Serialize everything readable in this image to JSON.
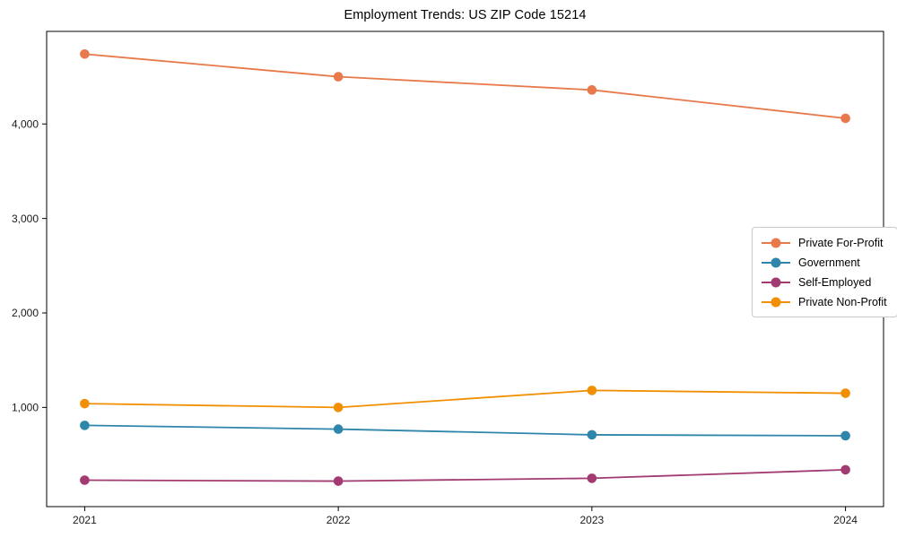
{
  "title": "Employment Trends: US ZIP Code 15214",
  "chart_data": {
    "type": "line",
    "x": [
      2021,
      2022,
      2023,
      2024
    ],
    "x_tick_labels": [
      "2021",
      "2022",
      "2023",
      "2024"
    ],
    "series": [
      {
        "name": "Private For-Profit",
        "color": "#E8794B",
        "values": [
          4740,
          4500,
          4360,
          4060
        ]
      },
      {
        "name": "Government",
        "color": "#2E86AB",
        "values": [
          810,
          770,
          710,
          700
        ]
      },
      {
        "name": "Self-Employed",
        "color": "#A23B72",
        "values": [
          230,
          220,
          250,
          340
        ]
      },
      {
        "name": "Private Non-Profit",
        "color": "#F18F01",
        "values": [
          1040,
          1000,
          1180,
          1150
        ]
      }
    ],
    "yticks": [
      1000,
      2000,
      3000,
      4000
    ],
    "ytick_labels": [
      "1,000",
      "2,000",
      "3,000",
      "4,000"
    ],
    "ylim": [
      -50,
      4980
    ],
    "xlim": [
      2020.85,
      2024.15
    ],
    "legend_position": "center right",
    "grid": false,
    "axis_color": "#000000",
    "tick_label_color": "#1a1a1a"
  }
}
